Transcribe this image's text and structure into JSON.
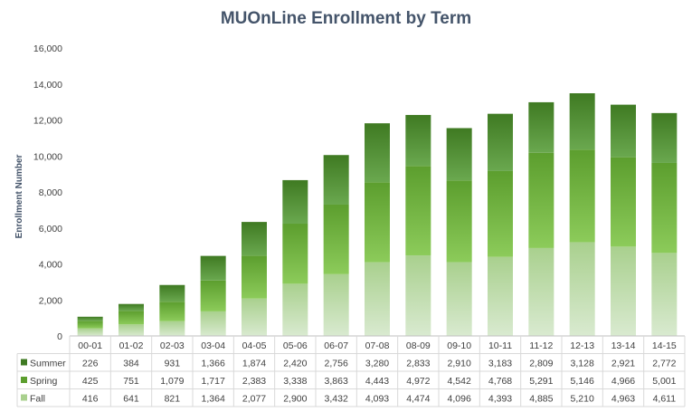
{
  "chart_data": {
    "type": "bar",
    "stacked": true,
    "title": "MUOnLine Enrollment by Term",
    "xlabel": "",
    "ylabel": "Enrollment Number",
    "ylim": [
      0,
      16000
    ],
    "yticks": [
      "0",
      "2,000",
      "4,000",
      "6,000",
      "8,000",
      "10,000",
      "12,000",
      "14,000",
      "16,000"
    ],
    "grid": false,
    "legend": "data-table-left",
    "categories": [
      "00-01",
      "01-02",
      "02-03",
      "03-04",
      "04-05",
      "05-06",
      "06-07",
      "07-08",
      "08-09",
      "09-10",
      "10-11",
      "11-12",
      "12-13",
      "13-14",
      "14-15"
    ],
    "series": [
      {
        "name": "Fall",
        "color_top": "#a9d08e",
        "color_bottom": "#d9ead0",
        "values": [
          416,
          641,
          821,
          1364,
          2077,
          2900,
          3432,
          4093,
          4474,
          4096,
          4393,
          4885,
          5210,
          4963,
          4611
        ],
        "labels": [
          "416",
          "641",
          "821",
          "1,364",
          "2,077",
          "2,900",
          "3,432",
          "4,093",
          "4,474",
          "4,096",
          "4,393",
          "4,885",
          "5,210",
          "4,963",
          "4,611"
        ]
      },
      {
        "name": "Spring",
        "color_top": "#5c9e2e",
        "color_bottom": "#8ccb5a",
        "values": [
          425,
          751,
          1079,
          1717,
          2383,
          3338,
          3863,
          4443,
          4972,
          4542,
          4768,
          5291,
          5146,
          4966,
          5001
        ],
        "labels": [
          "425",
          "751",
          "1,079",
          "1,717",
          "2,383",
          "3,338",
          "3,863",
          "4,443",
          "4,972",
          "4,542",
          "4,768",
          "5,291",
          "5,146",
          "4,966",
          "5,001"
        ]
      },
      {
        "name": "Summer",
        "color_top": "#3f7a22",
        "color_bottom": "#6aa84f",
        "values": [
          226,
          384,
          931,
          1366,
          1874,
          2420,
          2756,
          3280,
          2833,
          2910,
          3183,
          2809,
          3128,
          2921,
          2772
        ],
        "labels": [
          "226",
          "384",
          "931",
          "1,366",
          "1,874",
          "2,420",
          "2,756",
          "3,280",
          "2,833",
          "2,910",
          "3,183",
          "2,809",
          "3,128",
          "2,921",
          "2,772"
        ]
      }
    ]
  }
}
